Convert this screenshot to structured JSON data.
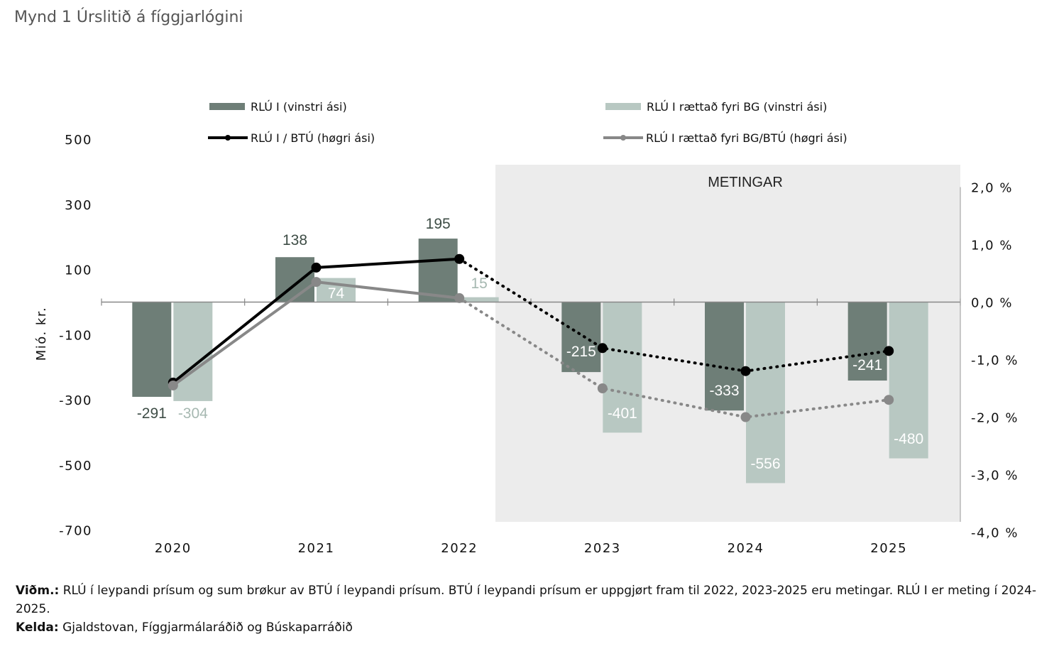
{
  "title": "Mynd 1 Úrslitið á fíggjarlógini",
  "chart_data": {
    "type": "bar",
    "categories": [
      "2020",
      "2021",
      "2022",
      "2023",
      "2024",
      "2025"
    ],
    "forecast_label": "METINGAR",
    "forecast_from": "2023",
    "ylabel": "Mió. kr.",
    "ylim": [
      -700,
      500
    ],
    "yticks": [
      "500",
      "300",
      "100",
      "-100",
      "-300",
      "-500",
      "-700"
    ],
    "ytick_values": [
      500,
      300,
      100,
      -100,
      -300,
      -500,
      -700
    ],
    "y2lim": [
      -4.0,
      2.0
    ],
    "y2ticks": [
      "2,0 %",
      "1,0 %",
      "0,0 %",
      "-1,0 %",
      "-2,0 %",
      "-3,0 %",
      "-4,0 %"
    ],
    "y2tick_values": [
      2.0,
      1.0,
      0.0,
      -1.0,
      -2.0,
      -3.0,
      -4.0
    ],
    "series": [
      {
        "name": "RLÚ I (vinstri ási)",
        "kind": "bar",
        "axis": "left",
        "color": "#6e7e77",
        "values": [
          -291,
          138,
          195,
          -215,
          -333,
          -241
        ],
        "labels": [
          "-291",
          "138",
          "195",
          "-215",
          "-333",
          "-241"
        ]
      },
      {
        "name": "RLÚ I rættað fyri BG (vinstri ási)",
        "kind": "bar",
        "axis": "left",
        "color": "#b8c8c2",
        "values": [
          -304,
          74,
          15,
          -401,
          -556,
          -480
        ],
        "labels": [
          "-304",
          "74",
          "15",
          "-401",
          "-556",
          "-480"
        ]
      },
      {
        "name": "RLÚ I / BTÚ (høgri ási)",
        "kind": "line",
        "axis": "right",
        "color": "#000000",
        "values": [
          -1.4,
          0.6,
          0.75,
          -0.8,
          -1.2,
          -0.85
        ]
      },
      {
        "name": "RLÚ I rættað fyri BG/BTÚ (høgri ási)",
        "kind": "line",
        "axis": "right",
        "color": "#888888",
        "values": [
          -1.45,
          0.35,
          0.07,
          -1.5,
          -2.0,
          -1.7
        ]
      }
    ],
    "legend_position": "top"
  },
  "notes": {
    "note_label": "Viðm.:",
    "note_text": "RLÚ í leypandi prísum og sum brøkur av BTÚ í leypandi prísum. BTÚ í leypandi prísum er uppgjørt fram til 2022, 2023-2025 eru metingar. RLÚ I er meting í 2024-2025.",
    "source_label": "Kelda:",
    "source_text": "Gjaldstovan, Fíggjarmálaráðið og Búskaparráðið"
  }
}
